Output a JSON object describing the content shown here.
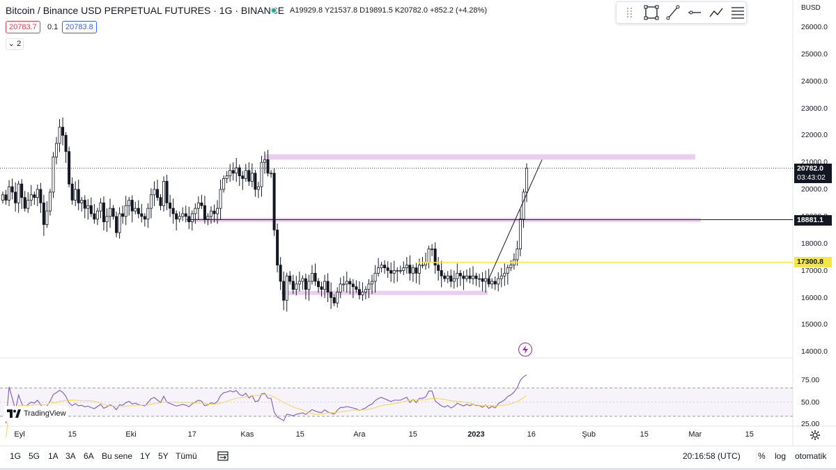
{
  "legend": {
    "title": "Bitcoin / Binance USD PERPETUAL FUTURES · 1G · BINANCE",
    "ohlc": "A19929.8 Y21537.8 D19891.5 K20782.0 +852.2 (+4.28%)",
    "bid": "20783.7",
    "spread": "0.1",
    "ask": "20783.8",
    "collapse": "⌄ 2"
  },
  "toolbar": {
    "tools": [
      "drag-handle-icon",
      "rectangle-icon",
      "trend-line-icon",
      "horizontal-line-icon",
      "path-icon",
      "fib-icon"
    ]
  },
  "price_axis": {
    "currency": "BUSD",
    "ticks": [
      "26000.0",
      "25000.0",
      "24000.0",
      "23000.0",
      "22000.0",
      "21000.0",
      "20000.0",
      "19000.0",
      "18000.0",
      "17000.0",
      "16000.0",
      "15000.0",
      "14000.0"
    ],
    "last_price": "20782.0",
    "countdown": "03:43:02",
    "level_tag": "18881.1",
    "yellow_tag": "17300.8"
  },
  "rsi_axis": {
    "ticks": [
      "75.00",
      "50.00",
      "25.00"
    ]
  },
  "time_axis": {
    "ticks": [
      "Eyl",
      "15",
      "Eki",
      "17",
      "Kas",
      "15",
      "Ara",
      "15",
      "2023",
      "16",
      "Şub",
      "15",
      "Mar",
      "15"
    ]
  },
  "logo": {
    "text": "TradingView"
  },
  "bottom": {
    "ranges": [
      "1G",
      "5G",
      "1A",
      "3A",
      "6A",
      "Bu sene",
      "1Y",
      "5Y",
      "Tümü"
    ],
    "clock": "20:16:58 (UTC)",
    "percent": "%",
    "log": "log",
    "auto": "otomatik"
  },
  "colors": {
    "up": "#26a69a",
    "candle": "#131722",
    "zone": "#e1bee7",
    "yellow": "#f5e642",
    "rsi": "#7e57c2",
    "rsi_ma": "#f5d547",
    "rsi_band": "#7e57c2"
  },
  "chart_data": {
    "type": "candlestick",
    "symbol": "BTCBUSD perpetual",
    "timeframe": "1G",
    "y_range": [
      13500,
      26500
    ],
    "closes": [
      19800,
      19600,
      20100,
      19900,
      19500,
      20200,
      19700,
      19300,
      19600,
      19800,
      19700,
      20000,
      19500,
      18700,
      19200,
      19900,
      21200,
      21700,
      22300,
      22000,
      21400,
      20200,
      19600,
      20000,
      19500,
      19600,
      19300,
      19400,
      19100,
      18900,
      19200,
      19500,
      18800,
      19000,
      19300,
      19000,
      18400,
      19100,
      19000,
      19400,
      19600,
      19200,
      19300,
      19100,
      19000,
      18900,
      19300,
      19800,
      20000,
      19700,
      19400,
      20300,
      19500,
      19300,
      19100,
      18900,
      19000,
      19100,
      19000,
      18800,
      19100,
      19300,
      19500,
      19400,
      18900,
      19000,
      19200,
      19100,
      19300,
      20000,
      20400,
      20500,
      20700,
      20600,
      20800,
      20500,
      20400,
      20700,
      20300,
      20600,
      20000,
      20100,
      21000,
      21100,
      20600,
      20600,
      18500,
      17200,
      16600,
      15900,
      16800,
      16600,
      16300,
      16500,
      16600,
      16700,
      16300,
      16600,
      16900,
      16600,
      16400,
      16300,
      16600,
      16200,
      16000,
      15800,
      16200,
      16500,
      16500,
      16600,
      16500,
      16400,
      16300,
      16100,
      16200,
      16300,
      16500,
      16600,
      16900,
      17100,
      17200,
      17100,
      17000,
      16900,
      17000,
      17000,
      17000,
      17100,
      17200,
      16900,
      17100,
      16900,
      17200,
      17200,
      17300,
      17800,
      17800,
      17200,
      17000,
      16800,
      16700,
      16800,
      16600,
      16700,
      16900,
      16800,
      16700,
      16800,
      16700,
      16800,
      16700,
      16700,
      16600,
      16700,
      16500,
      16600,
      16500,
      16700,
      16800,
      16900,
      17100,
      17200,
      17400,
      17800,
      18900,
      19900,
      20782
    ],
    "horizontal_levels": [
      18881.1,
      17300.8
    ],
    "zones": [
      [
        21100,
        21300
      ],
      [
        18800,
        18950
      ],
      [
        16100,
        16250
      ]
    ],
    "rsi_band": [
      30,
      70
    ],
    "rsi_ticks": [
      25,
      50,
      75
    ]
  }
}
